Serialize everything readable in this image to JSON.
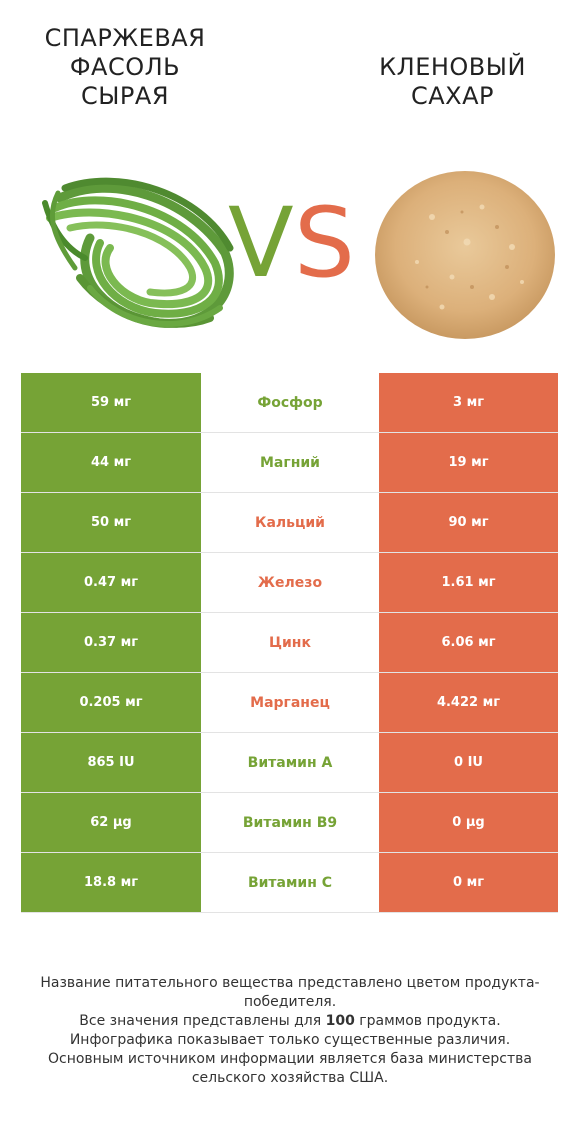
{
  "header": {
    "left_title": "СПАРЖЕВАЯ\nФАСОЛЬ\nСЫРАЯ",
    "right_title": "КЛЕНОВЫЙ\nСАХАР",
    "vs_v": "V",
    "vs_s": "S"
  },
  "colors": {
    "left_winner": "#76a336",
    "right_winner": "#e36c4b"
  },
  "rows": [
    {
      "left": "59 мг",
      "name": "Фосфор",
      "right": "3 мг",
      "winner": "left"
    },
    {
      "left": "44 мг",
      "name": "Магний",
      "right": "19 мг",
      "winner": "left"
    },
    {
      "left": "50 мг",
      "name": "Кальций",
      "right": "90 мг",
      "winner": "right"
    },
    {
      "left": "0.47 мг",
      "name": "Железо",
      "right": "1.61 мг",
      "winner": "right"
    },
    {
      "left": "0.37 мг",
      "name": "Цинк",
      "right": "6.06 мг",
      "winner": "right"
    },
    {
      "left": "0.205 мг",
      "name": "Марганец",
      "right": "4.422 мг",
      "winner": "right"
    },
    {
      "left": "865 IU",
      "name": "Витамин A",
      "right": "0 IU",
      "winner": "left"
    },
    {
      "left": "62 µg",
      "name": "Витамин B9",
      "right": "0 µg",
      "winner": "left"
    },
    {
      "left": "18.8 мг",
      "name": "Витамин C",
      "right": "0 мг",
      "winner": "left"
    }
  ],
  "footer": {
    "line1": "Название питательного вещества представлено цветом продукта-победителя.",
    "line2_pre": "Все значения представлены для ",
    "line2_bold": "100",
    "line2_post": " граммов продукта.",
    "line3": "Инфографика показывает только существенные различия.",
    "line4": "Основным источником информации является база министерства сельского хозяйства США."
  }
}
